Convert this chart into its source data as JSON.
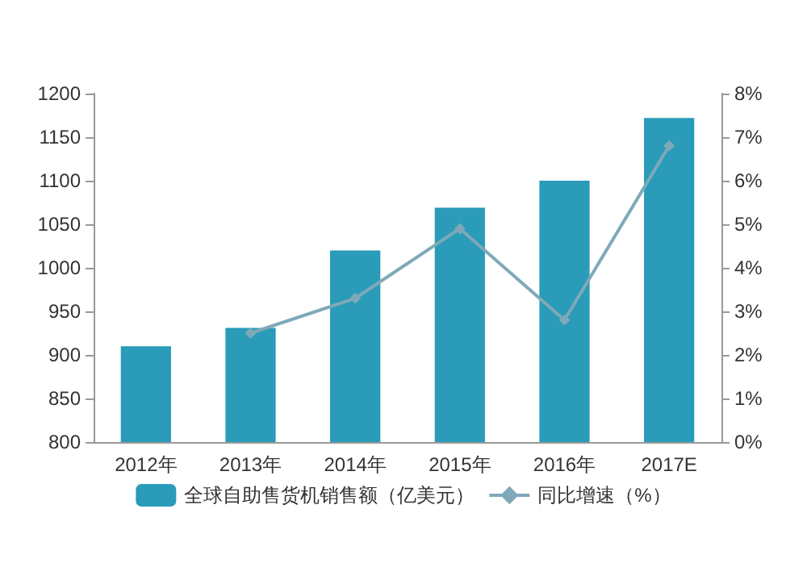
{
  "chart_data": {
    "type": "bar",
    "categories": [
      "2012年",
      "2013年",
      "2014年",
      "2015年",
      "2016年",
      "2017E"
    ],
    "series": [
      {
        "name": "全球自助售货机销售额（亿美元）",
        "color": "#2a9bb8",
        "values": [
          910,
          931,
          1020,
          1069,
          1100,
          1172
        ]
      },
      {
        "name": "同比增速（%）",
        "type": "line",
        "axis": "y2",
        "color": "#7fa9b8",
        "values": [
          null,
          2.5,
          3.3,
          4.9,
          2.8,
          6.8
        ]
      }
    ],
    "ylim": [
      800,
      1200
    ],
    "yticks": [
      800,
      850,
      900,
      950,
      1000,
      1050,
      1100,
      1150,
      1200
    ],
    "y2lim": [
      0,
      8
    ],
    "y2ticks": [
      {
        "value": 0,
        "label": "0%"
      },
      {
        "value": 1,
        "label": "1%"
      },
      {
        "value": 2,
        "label": "2%"
      },
      {
        "value": 3,
        "label": "3%"
      },
      {
        "value": 4,
        "label": "4%"
      },
      {
        "value": 5,
        "label": "5%"
      },
      {
        "value": 6,
        "label": "6%"
      },
      {
        "value": 7,
        "label": "7%"
      },
      {
        "value": 8,
        "label": "8%"
      }
    ],
    "grid": false,
    "legend": "bottom",
    "marker": "diamond"
  }
}
